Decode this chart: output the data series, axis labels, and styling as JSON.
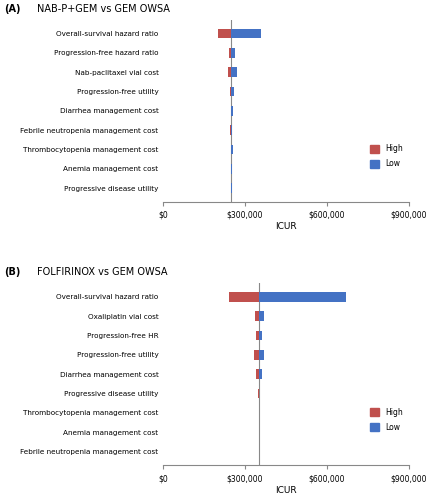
{
  "panel_A": {
    "title": "NAB-P+GEM vs GEM OWSA",
    "label": "(A)",
    "categories": [
      "Overall-survival hazard ratio",
      "Progression-free hazard ratio",
      "Nab-paclitaxel vial cost",
      "Progression-free utility",
      "Diarrhea management cost",
      "Febrile neutropenia management cost",
      "Thrombocytopenia management cost",
      "Anemia management cost",
      "Progressive disease utility"
    ],
    "baseline": 250000,
    "high_vals": [
      200000,
      242000,
      238000,
      244000,
      248000,
      244000,
      248000,
      249800,
      249800
    ],
    "low_vals": [
      360000,
      262000,
      272000,
      258000,
      255000,
      252000,
      255000,
      250200,
      250200
    ],
    "xlim": [
      0,
      900000
    ],
    "xticks": [
      0,
      300000,
      600000,
      900000
    ],
    "xlabel": "ICUR",
    "xticklabels": [
      "$0",
      "$300,000",
      "$600,000",
      "$900,000"
    ]
  },
  "panel_B": {
    "title": "FOLFIRINOX vs GEM OWSA",
    "label": "(B)",
    "categories": [
      "Overall-survival hazard ratio",
      "Oxaliplatin vial cost",
      "Progression-free HR",
      "Progression-free utility",
      "Diarrhea management cost",
      "Progressive disease utility",
      "Thrombocytopenia management cost",
      "Anemia management cost",
      "Febrile neutropenia management cost"
    ],
    "baseline": 350000,
    "high_vals": [
      240000,
      336000,
      340000,
      332000,
      340000,
      349000,
      349800,
      349900,
      349900
    ],
    "low_vals": [
      670000,
      368000,
      362000,
      370000,
      362000,
      352000,
      350200,
      350100,
      350100
    ],
    "xlim": [
      0,
      900000
    ],
    "xticks": [
      0,
      300000,
      600000,
      900000
    ],
    "xlabel": "ICUR",
    "xticklabels": [
      "$0",
      "$300,000",
      "$600,000",
      "$900,000"
    ]
  },
  "high_color": "#C0504D",
  "low_color": "#4472C4",
  "bar_height": 0.5,
  "figsize": [
    4.3,
    5.0
  ],
  "dpi": 100
}
